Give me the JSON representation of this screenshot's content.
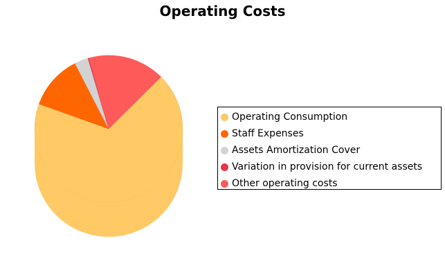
{
  "chart_data": {
    "type": "pie",
    "title": "Operating Costs",
    "legend_position": "right",
    "slices": [
      {
        "name": "Operating Consumption",
        "value": 68,
        "color": "#FFC966"
      },
      {
        "name": "Staff Expenses",
        "value": 12,
        "color": "#FF6600"
      },
      {
        "name": "Assets Amortization Cover",
        "value": 3,
        "color": "#D3D3D3"
      },
      {
        "name": "Variation in provision for current assets",
        "value": 0.2,
        "color": "#E8334A"
      },
      {
        "name": "Other operating costs",
        "value": 16.8,
        "color": "#FF5A5A"
      }
    ]
  }
}
